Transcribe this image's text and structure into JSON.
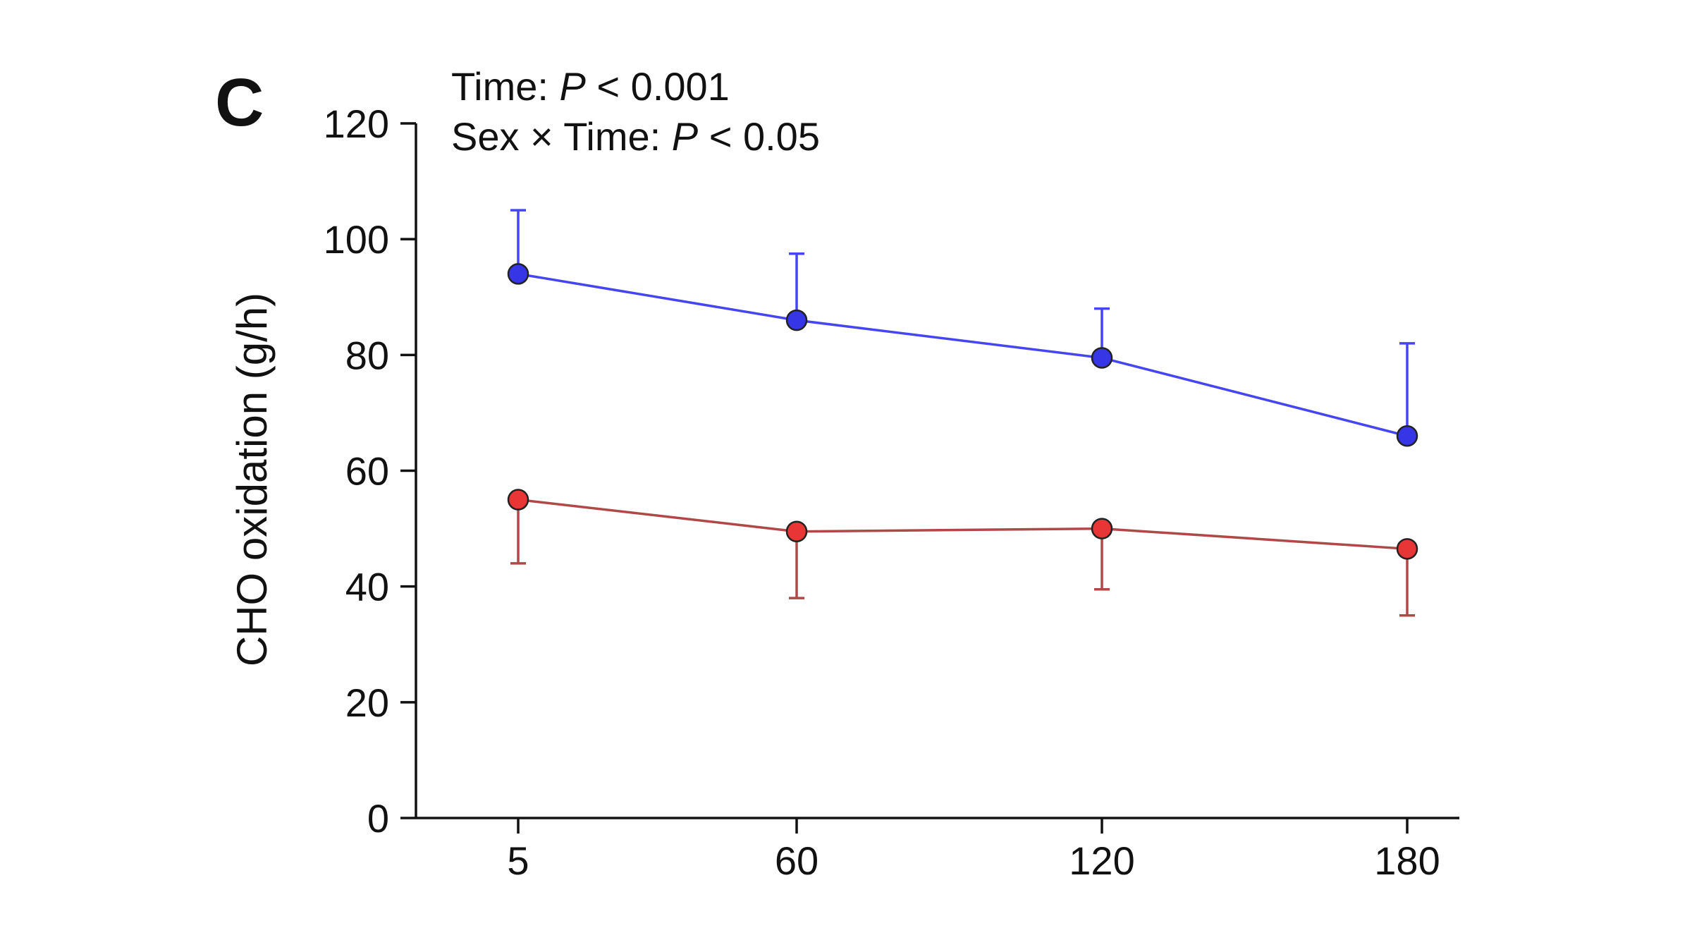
{
  "panel_label": "C",
  "annotations": [
    {
      "id": "time",
      "prefix": "Time: ",
      "italic": "P",
      "suffix": " < 0.001"
    },
    {
      "id": "sex-time",
      "prefix": "Sex × Time: ",
      "italic": "P",
      "suffix": " < 0.05"
    }
  ],
  "chart_data": {
    "type": "line",
    "title": "",
    "xlabel": "",
    "ylabel": "CHO oxidation (g/h)",
    "x": [
      5,
      60,
      120,
      180
    ],
    "x_tick_labels": [
      "5",
      "60",
      "120",
      "180"
    ],
    "y_ticks": [
      0,
      20,
      40,
      60,
      80,
      100,
      120
    ],
    "ylim": [
      0,
      120
    ],
    "grid": false,
    "legend": "none",
    "series": [
      {
        "key": "blue",
        "color": "#4545f2",
        "marker_fill": "#3636e6",
        "values": [
          94,
          86,
          79.5,
          66
        ],
        "error_upper": [
          105,
          97.5,
          88,
          82
        ],
        "error_direction": "up"
      },
      {
        "key": "red",
        "color": "#b04848",
        "marker_fill": "#e83535",
        "values": [
          55,
          49.5,
          50,
          46.5
        ],
        "error_lower": [
          44,
          38,
          39.5,
          35
        ],
        "error_direction": "down"
      }
    ]
  }
}
